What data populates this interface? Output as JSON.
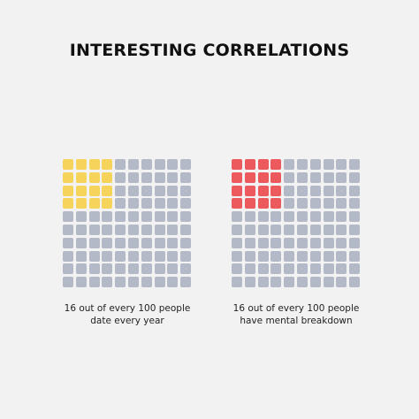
{
  "title": "INTERESTING CORRELATIONS",
  "colors": {
    "background": "#f2f2f2",
    "empty": "#b3b9c7",
    "left_highlight": "#f6d45c",
    "right_highlight": "#ec5a5d"
  },
  "chart_data": [
    {
      "type": "waffle",
      "total": 100,
      "highlighted": 16,
      "highlight_color": "#f6d45c",
      "caption_line1": "16 out of every 100 people",
      "caption_line2": "date every year"
    },
    {
      "type": "waffle",
      "total": 100,
      "highlighted": 16,
      "highlight_color": "#ec5a5d",
      "caption_line1": "16 out of every 100 people",
      "caption_line2": "have mental breakdown"
    }
  ]
}
